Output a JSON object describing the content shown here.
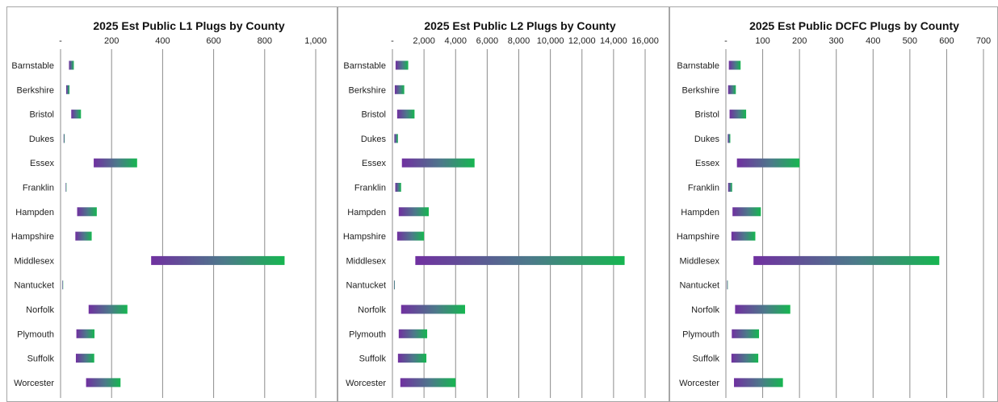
{
  "colors": {
    "bar_start": "#7030a0",
    "bar_end": "#16b650",
    "grid": "#8c8c8c",
    "frame": "#a6a6a6"
  },
  "chart_data": [
    {
      "type": "bar",
      "orientation": "horizontal",
      "stacked_floating": true,
      "title": "2025 Est Public L1 Plugs by County",
      "categories": [
        "Barnstable",
        "Berkshire",
        "Bristol",
        "Dukes",
        "Essex",
        "Franklin",
        "Hampden",
        "Hampshire",
        "Middlesex",
        "Nantucket",
        "Norfolk",
        "Plymouth",
        "Suffolk",
        "Worcester"
      ],
      "bar_start": [
        33,
        22,
        42,
        12,
        130,
        20,
        65,
        58,
        355,
        7,
        110,
        62,
        60,
        100
      ],
      "values": [
        52,
        35,
        80,
        16,
        300,
        23,
        142,
        122,
        878,
        9,
        262,
        133,
        132,
        235
      ],
      "xlim": [
        0,
        1000
      ],
      "ticks": [
        "-",
        "200",
        "400",
        "600",
        "800",
        "1,000"
      ],
      "tick_values": [
        0,
        200,
        400,
        600,
        800,
        1000
      ],
      "grid": true
    },
    {
      "type": "bar",
      "orientation": "horizontal",
      "stacked_floating": true,
      "title": "2025 Est Public L2 Plugs by County",
      "categories": [
        "Barnstable",
        "Berkshire",
        "Bristol",
        "Dukes",
        "Essex",
        "Franklin",
        "Hampden",
        "Hampshire",
        "Middlesex",
        "Nantucket",
        "Norfolk",
        "Plymouth",
        "Suffolk",
        "Worcester"
      ],
      "bar_start": [
        200,
        150,
        300,
        120,
        600,
        180,
        400,
        300,
        1450,
        100,
        550,
        400,
        350,
        500
      ],
      "values": [
        1000,
        750,
        1400,
        350,
        5200,
        550,
        2300,
        2000,
        14700,
        150,
        4600,
        2200,
        2150,
        4000
      ],
      "xlim": [
        0,
        16000
      ],
      "ticks": [
        "-",
        "2,000",
        "4,000",
        "6,000",
        "8,000",
        "10,000",
        "12,000",
        "14,000",
        "16,000"
      ],
      "tick_values": [
        0,
        2000,
        4000,
        6000,
        8000,
        10000,
        12000,
        14000,
        16000
      ],
      "grid": true
    },
    {
      "type": "bar",
      "orientation": "horizontal",
      "stacked_floating": true,
      "title": "2025 Est Public DCFC Plugs by County",
      "categories": [
        "Barnstable",
        "Berkshire",
        "Bristol",
        "Dukes",
        "Essex",
        "Franklin",
        "Hampden",
        "Hampshire",
        "Middlesex",
        "Nantucket",
        "Norfolk",
        "Plymouth",
        "Suffolk",
        "Worcester"
      ],
      "bar_start": [
        8,
        6,
        10,
        5,
        30,
        6,
        18,
        15,
        75,
        3,
        25,
        16,
        15,
        22
      ],
      "values": [
        40,
        27,
        55,
        12,
        200,
        17,
        95,
        80,
        580,
        5,
        175,
        90,
        88,
        155
      ],
      "xlim": [
        0,
        700
      ],
      "ticks": [
        "-",
        "100",
        "200",
        "300",
        "400",
        "500",
        "600",
        "700"
      ],
      "tick_values": [
        0,
        100,
        200,
        300,
        400,
        500,
        600,
        700
      ],
      "grid": true
    }
  ]
}
